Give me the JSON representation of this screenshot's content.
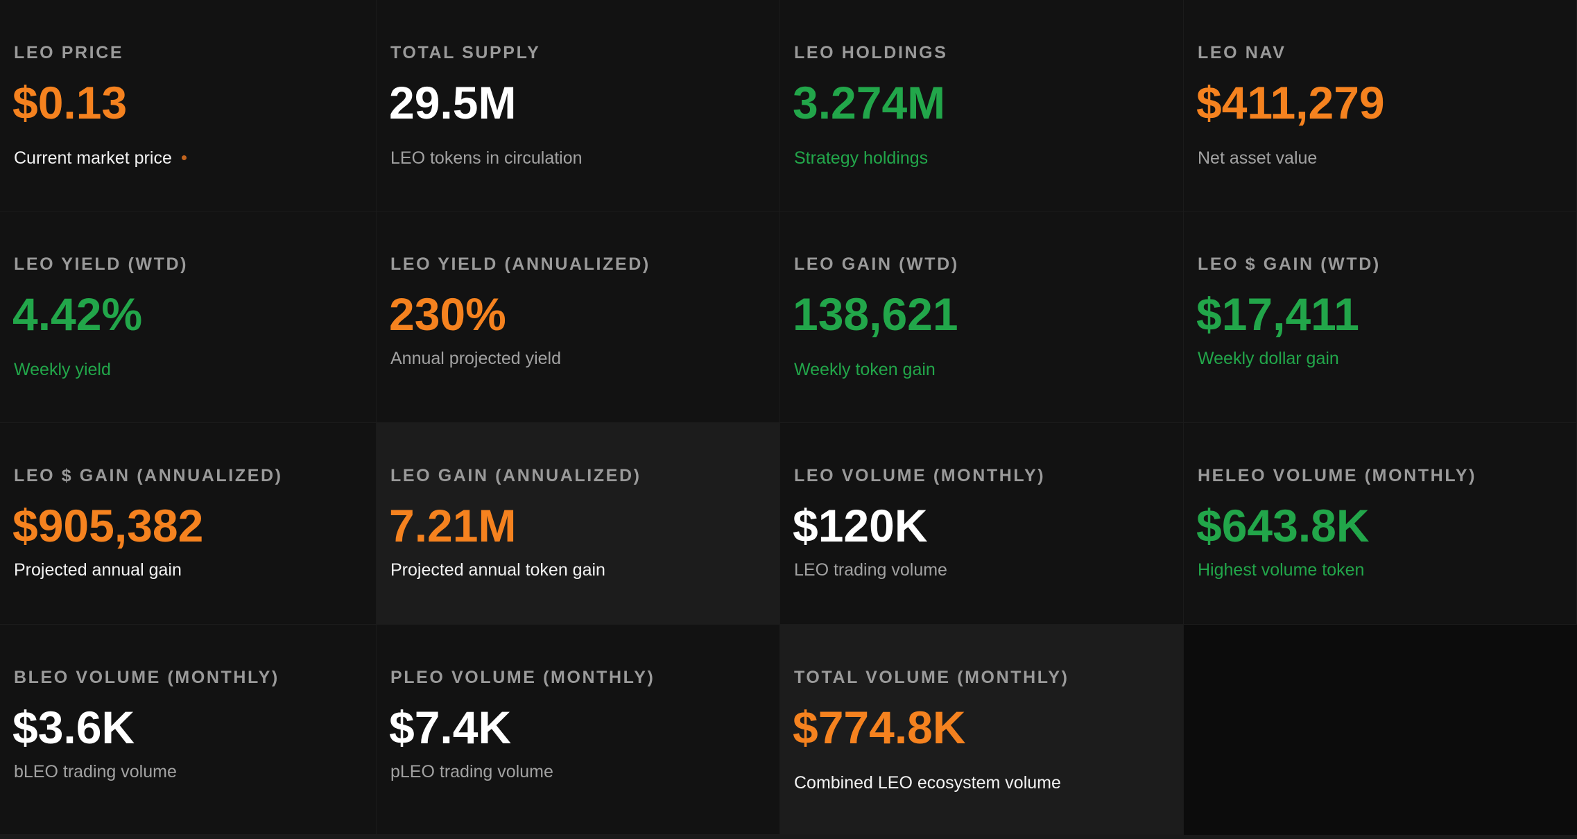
{
  "cards": [
    {
      "label": "LEO PRICE",
      "value": "$0.13",
      "sub": "Current market price"
    },
    {
      "label": "TOTAL SUPPLY",
      "value": "29.5M",
      "sub": "LEO tokens in circulation"
    },
    {
      "label": "LEO HOLDINGS",
      "value": "3.274M",
      "sub": "Strategy holdings"
    },
    {
      "label": "LEO NAV",
      "value": "$411,279",
      "sub": "Net asset value"
    },
    {
      "label": "LEO YIELD (WTD)",
      "value": "4.42%",
      "sub": "Weekly yield"
    },
    {
      "label": "LEO YIELD (ANNUALIZED)",
      "value": "230%",
      "sub": "Annual projected yield"
    },
    {
      "label": "LEO GAIN (WTD)",
      "value": "138,621",
      "sub": "Weekly token gain"
    },
    {
      "label": "LEO $ GAIN (WTD)",
      "value": "$17,411",
      "sub": "Weekly dollar gain"
    },
    {
      "label": "LEO $ GAIN (ANNUALIZED)",
      "value": "$905,382",
      "sub": "Projected annual gain"
    },
    {
      "label": "LEO GAIN (ANNUALIZED)",
      "value": "7.21M",
      "sub": "Projected annual token gain"
    },
    {
      "label": "LEO VOLUME (MONTHLY)",
      "value": "$120K",
      "sub": "LEO trading volume"
    },
    {
      "label": "HELEO VOLUME (MONTHLY)",
      "value": "$643.8K",
      "sub": "Highest volume token"
    },
    {
      "label": "BLEO VOLUME (MONTHLY)",
      "value": "$3.6K",
      "sub": "bLEO trading volume"
    },
    {
      "label": "PLEO VOLUME (MONTHLY)",
      "value": "$7.4K",
      "sub": "pLEO trading volume"
    },
    {
      "label": "TOTAL VOLUME (MONTHLY)",
      "value": "$774.8K",
      "sub": "Combined LEO ecosystem volume"
    }
  ],
  "colors": {
    "orange": "#f5821f",
    "green": "#22a64a",
    "white": "#ffffff",
    "label_gray": "#9a9a9a",
    "card_bg": "#121212",
    "card_highlight_bg": "#1c1c1c",
    "live_dot": "#c2641e"
  }
}
